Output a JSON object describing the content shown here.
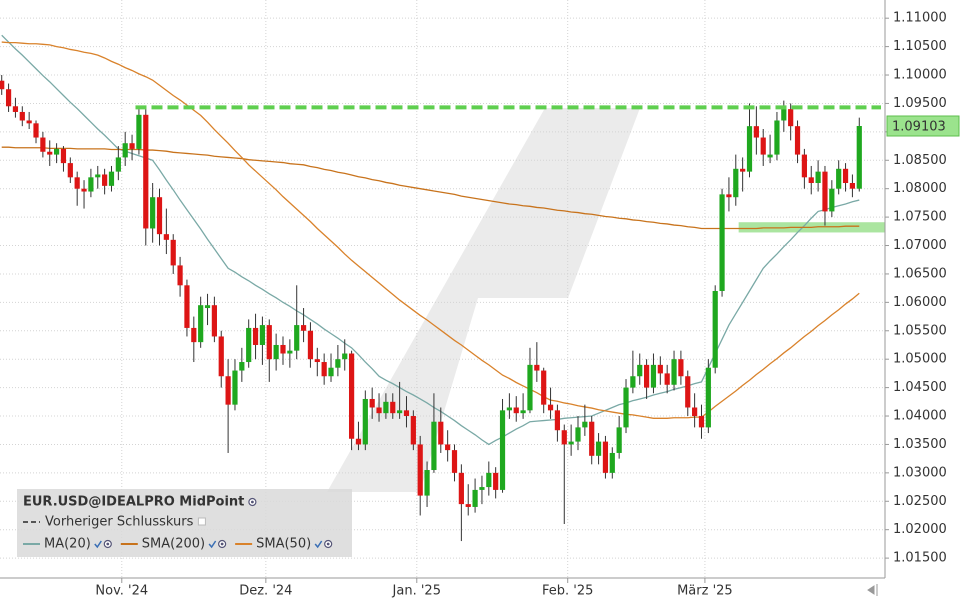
{
  "chart_data": {
    "type": "candlestick",
    "title": "EUR.USD@IDEALPRO MidPoint",
    "categories": [
      null,
      null,
      null,
      null,
      null,
      null,
      null,
      null,
      null,
      null,
      null,
      null,
      null,
      null,
      null,
      null,
      null,
      null,
      "Nov. '24",
      null,
      null,
      null,
      null,
      null,
      null,
      null,
      null,
      null,
      null,
      null,
      null,
      null,
      null,
      null,
      null,
      null,
      null,
      null,
      null,
      "Dez. '24",
      null,
      null,
      null,
      null,
      null,
      null,
      null,
      null,
      null,
      null,
      null,
      null,
      null,
      null,
      null,
      null,
      null,
      null,
      null,
      null,
      null,
      "Jan. '25",
      null,
      null,
      null,
      null,
      null,
      null,
      null,
      null,
      null,
      null,
      null,
      null,
      null,
      null,
      null,
      null,
      null,
      null,
      null,
      null,
      null,
      "Feb. '25",
      null,
      null,
      null,
      null,
      null,
      null,
      null,
      null,
      null,
      null,
      null,
      null,
      null,
      null,
      null,
      null,
      null,
      null,
      null,
      "März '25",
      null,
      null,
      null,
      null,
      null,
      null,
      null,
      null,
      null,
      null,
      null,
      null,
      null,
      null,
      null,
      null,
      null,
      null,
      null,
      null,
      null,
      null
    ],
    "open": [
      1.099,
      1.0975,
      1.0945,
      1.0935,
      1.092,
      1.0915,
      1.089,
      1.0865,
      1.086,
      1.087,
      1.0845,
      1.082,
      1.08,
      1.0795,
      1.082,
      1.0825,
      1.0805,
      1.083,
      1.0855,
      1.088,
      1.087,
      1.093,
      1.073,
      1.0785,
      1.072,
      1.071,
      1.0665,
      1.063,
      1.0555,
      1.053,
      1.059,
      1.0595,
      1.054,
      1.047,
      1.042,
      1.048,
      1.0495,
      1.0555,
      1.0525,
      1.056,
      1.05,
      1.0525,
      1.051,
      1.0515,
      1.056,
      1.055,
      1.05,
      1.0495,
      1.047,
      1.0485,
      1.05,
      1.051,
      1.036,
      1.035,
      1.043,
      1.0415,
      1.0405,
      1.0425,
      1.0405,
      1.041,
      1.04,
      1.035,
      1.026,
      1.0305,
      1.039,
      1.035,
      1.034,
      1.03,
      1.0245,
      1.024,
      1.027,
      1.0275,
      1.03,
      1.027,
      1.041,
      1.0415,
      1.0405,
      1.041,
      1.049,
      1.048,
      1.042,
      1.041,
      1.0375,
      1.035,
      1.0355,
      1.038,
      1.039,
      1.033,
      1.0355,
      1.03,
      1.0335,
      1.038,
      1.045,
      1.047,
      1.049,
      1.045,
      1.049,
      1.0475,
      1.0455,
      1.05,
      1.047,
      1.0415,
      1.04,
      1.038,
      1.0485,
      1.062,
      1.079,
      1.0785,
      1.0835,
      1.083,
      1.091,
      1.089,
      1.0855,
      1.086,
      1.092,
      1.094,
      1.091,
      1.086,
      1.082,
      1.081,
      1.083,
      1.076,
      1.08,
      1.0835,
      1.081,
      1.08
    ],
    "high": [
      1.1,
      1.0985,
      1.096,
      1.0945,
      1.0935,
      1.092,
      1.09,
      1.0885,
      1.088,
      1.0875,
      1.0855,
      1.083,
      1.0815,
      1.0835,
      1.084,
      1.0835,
      1.084,
      1.0875,
      1.09,
      1.0895,
      1.094,
      1.094,
      1.081,
      1.08,
      1.0765,
      1.072,
      1.068,
      1.064,
      1.0575,
      1.061,
      1.0615,
      1.061,
      1.055,
      1.05,
      1.05,
      1.052,
      1.057,
      1.058,
      1.0575,
      1.057,
      1.0545,
      1.054,
      1.0535,
      1.063,
      1.059,
      1.0565,
      1.052,
      1.051,
      1.051,
      1.0525,
      1.0535,
      1.0515,
      1.039,
      1.0445,
      1.045,
      1.044,
      1.044,
      1.044,
      1.046,
      1.0435,
      1.041,
      1.0365,
      1.032,
      1.044,
      1.0415,
      1.0375,
      1.035,
      1.0315,
      1.028,
      1.029,
      1.0295,
      1.032,
      1.031,
      1.043,
      1.044,
      1.0435,
      1.044,
      1.052,
      1.053,
      1.0485,
      1.045,
      1.042,
      1.0385,
      1.0385,
      1.04,
      1.042,
      1.04,
      1.037,
      1.0365,
      1.0345,
      1.04,
      1.0465,
      1.0515,
      1.051,
      1.05,
      1.051,
      1.0505,
      1.049,
      1.0515,
      1.0515,
      1.048,
      1.044,
      1.042,
      1.05,
      1.063,
      1.08,
      1.082,
      1.086,
      1.0855,
      1.095,
      1.0945,
      1.0905,
      1.0895,
      1.0935,
      1.0955,
      1.095,
      1.092,
      1.087,
      1.084,
      1.085,
      1.084,
      1.0815,
      1.085,
      1.0845,
      1.0825,
      1.0925
    ],
    "low": [
      1.0965,
      1.0935,
      1.0925,
      1.091,
      1.0905,
      1.088,
      1.0855,
      1.084,
      1.0845,
      1.083,
      1.081,
      1.077,
      1.0765,
      1.0785,
      1.08,
      1.079,
      1.0795,
      1.0815,
      1.084,
      1.085,
      1.086,
      1.07,
      1.0705,
      1.07,
      1.0685,
      1.065,
      1.061,
      1.054,
      1.0495,
      1.052,
      1.056,
      1.053,
      1.045,
      1.0335,
      1.041,
      1.046,
      1.0485,
      1.05,
      1.049,
      1.046,
      1.048,
      1.049,
      1.0485,
      1.05,
      1.053,
      1.0485,
      1.047,
      1.0455,
      1.046,
      1.047,
      1.048,
      1.034,
      1.034,
      1.034,
      1.0395,
      1.039,
      1.0395,
      1.0395,
      1.0395,
      1.038,
      1.034,
      1.0225,
      1.024,
      1.03,
      1.0335,
      1.032,
      1.0285,
      1.018,
      1.0225,
      1.023,
      1.0245,
      1.026,
      1.0255,
      1.0265,
      1.0395,
      1.039,
      1.0395,
      1.0405,
      1.046,
      1.0405,
      1.0395,
      1.0355,
      1.021,
      1.033,
      1.034,
      1.0365,
      1.0315,
      1.0315,
      1.029,
      1.029,
      1.0325,
      1.037,
      1.044,
      1.0455,
      1.043,
      1.044,
      1.0455,
      1.044,
      1.0445,
      1.0455,
      1.04,
      1.038,
      1.036,
      1.037,
      1.0475,
      1.061,
      1.076,
      1.077,
      1.0795,
      1.082,
      1.086,
      1.084,
      1.0845,
      1.085,
      1.09,
      1.0885,
      1.0845,
      1.08,
      1.079,
      1.0795,
      1.0735,
      1.075,
      1.079,
      1.0795,
      1.0785,
      1.0795
    ],
    "close": [
      1.0975,
      1.0945,
      1.0935,
      1.092,
      1.0915,
      1.089,
      1.0865,
      1.086,
      1.087,
      1.0845,
      1.082,
      1.08,
      1.0795,
      1.082,
      1.0825,
      1.0805,
      1.083,
      1.0855,
      1.088,
      1.087,
      1.093,
      1.073,
      1.0785,
      1.072,
      1.071,
      1.0665,
      1.063,
      1.0555,
      1.053,
      1.0595,
      1.0595,
      1.054,
      1.047,
      1.042,
      1.048,
      1.0495,
      1.0555,
      1.0525,
      1.056,
      1.05,
      1.0525,
      1.051,
      1.0515,
      1.056,
      1.055,
      1.05,
      1.0495,
      1.047,
      1.0485,
      1.05,
      1.051,
      1.036,
      1.035,
      1.043,
      1.0415,
      1.0405,
      1.0425,
      1.0405,
      1.041,
      1.04,
      1.035,
      1.026,
      1.0305,
      1.039,
      1.035,
      1.034,
      1.03,
      1.0245,
      1.024,
      1.027,
      1.0275,
      1.03,
      1.027,
      1.041,
      1.0415,
      1.0405,
      1.041,
      1.049,
      1.048,
      1.042,
      1.041,
      1.0375,
      1.035,
      1.0355,
      1.038,
      1.039,
      1.033,
      1.0355,
      1.03,
      1.0335,
      1.038,
      1.045,
      1.047,
      1.049,
      1.045,
      1.049,
      1.0475,
      1.0455,
      1.05,
      1.047,
      1.0415,
      1.04,
      1.038,
      1.0485,
      1.062,
      1.079,
      1.0785,
      1.0835,
      1.083,
      1.091,
      1.089,
      1.086,
      1.086,
      1.092,
      1.094,
      1.091,
      1.086,
      1.082,
      1.081,
      1.083,
      1.076,
      1.08,
      1.0835,
      1.081,
      1.08,
      1.09103
    ],
    "up_color": "#1fa81f",
    "down_color": "#dd1515",
    "series": [
      {
        "name": "MA(20)",
        "color": "#7aa9a6",
        "values": [
          1.107,
          1.1058,
          1.1046,
          1.1035,
          1.1023,
          1.1011,
          1.0999,
          1.0988,
          1.0976,
          1.0964,
          1.0952,
          1.0941,
          1.0929,
          1.0917,
          1.0905,
          1.0894,
          1.0882,
          1.087,
          1.0866,
          1.0862,
          1.0858,
          1.0854,
          1.085,
          1.0833,
          1.0815,
          1.0798,
          1.078,
          1.0763,
          1.0746,
          1.0729,
          1.0711,
          1.0694,
          1.0677,
          1.066,
          1.0653,
          1.0645,
          1.0638,
          1.063,
          1.0623,
          1.0615,
          1.0608,
          1.06,
          1.0593,
          1.0585,
          1.0578,
          1.057,
          1.0562,
          1.0553,
          1.0545,
          1.0537,
          1.0528,
          1.052,
          1.0508,
          1.0495,
          1.0483,
          1.047,
          1.0463,
          1.0457,
          1.045,
          1.0443,
          1.0437,
          1.043,
          1.0423,
          1.0415,
          1.0408,
          1.04,
          1.0392,
          1.0383,
          1.0375,
          1.0367,
          1.0358,
          1.035,
          1.0357,
          1.0363,
          1.037,
          1.0377,
          1.0383,
          1.039,
          1.0391,
          1.0392,
          1.0393,
          1.0394,
          1.0396,
          1.0397,
          1.0398,
          1.0399,
          1.04,
          1.0405,
          1.041,
          1.0415,
          1.042,
          1.0423,
          1.0427,
          1.043,
          1.0433,
          1.0437,
          1.044,
          1.0443,
          1.0447,
          1.045,
          1.0453,
          1.0457,
          1.046,
          1.0485,
          1.051,
          1.0535,
          1.056,
          1.058,
          1.06,
          1.062,
          1.064,
          1.066,
          1.0673,
          1.0685,
          1.0698,
          1.071,
          1.0723,
          1.0735,
          1.0748,
          1.076,
          1.0763,
          1.0767,
          1.077,
          1.0773,
          1.0777,
          1.078
        ]
      },
      {
        "name": "SMA(200)",
        "color": "#c8731c",
        "values": [
          1.0873,
          1.0873,
          1.0872,
          1.0872,
          1.0872,
          1.0872,
          1.0872,
          1.0871,
          1.0871,
          1.0871,
          1.0871,
          1.087,
          1.087,
          1.087,
          1.087,
          1.087,
          1.0869,
          1.0869,
          1.0869,
          1.0869,
          1.0869,
          1.0868,
          1.0868,
          1.0867,
          1.0866,
          1.0864,
          1.0863,
          1.0862,
          1.0861,
          1.086,
          1.0859,
          1.0857,
          1.0856,
          1.0855,
          1.0854,
          1.0853,
          1.0851,
          1.085,
          1.0849,
          1.0848,
          1.0847,
          1.0846,
          1.0844,
          1.0843,
          1.0842,
          1.0839,
          1.0837,
          1.0834,
          1.0832,
          1.0829,
          1.0827,
          1.0824,
          1.0821,
          1.0819,
          1.0816,
          1.0814,
          1.0811,
          1.0809,
          1.0806,
          1.0804,
          1.0802,
          1.08,
          1.0798,
          1.0796,
          1.0794,
          1.0792,
          1.079,
          1.0787,
          1.0785,
          1.0783,
          1.0781,
          1.0779,
          1.0777,
          1.0775,
          1.0773,
          1.0772,
          1.077,
          1.0769,
          1.0767,
          1.0766,
          1.0764,
          1.0762,
          1.0761,
          1.0759,
          1.0758,
          1.0756,
          1.0755,
          1.0753,
          1.0751,
          1.075,
          1.0748,
          1.0747,
          1.0745,
          1.0744,
          1.0742,
          1.0741,
          1.0739,
          1.0738,
          1.0736,
          1.0735,
          1.0733,
          1.0732,
          1.073,
          1.073,
          1.073,
          1.073,
          1.073,
          1.073,
          1.073,
          1.073,
          1.073,
          1.0731,
          1.0731,
          1.0731,
          1.0731,
          1.0732,
          1.0732,
          1.0732,
          1.0732,
          1.0733,
          1.0733,
          1.0733,
          1.0733,
          1.0734,
          1.0734,
          1.0734
        ]
      },
      {
        "name": "SMA(50)",
        "color": "#d9822b",
        "values": [
          1.1058,
          1.1057,
          1.1057,
          1.1056,
          1.1055,
          1.1055,
          1.1054,
          1.1053,
          1.105,
          1.1048,
          1.1045,
          1.1043,
          1.104,
          1.1038,
          1.1035,
          1.103,
          1.1024,
          1.1019,
          1.1013,
          1.1008,
          1.1002,
          1.0997,
          1.0991,
          1.0982,
          1.0973,
          1.0964,
          1.0956,
          1.0947,
          1.0938,
          1.0929,
          1.0917,
          1.0904,
          1.0892,
          1.088,
          1.0867,
          1.0855,
          1.0842,
          1.0831,
          1.082,
          1.0809,
          1.0798,
          1.0786,
          1.0775,
          1.0764,
          1.0753,
          1.0742,
          1.073,
          1.0719,
          1.0708,
          1.0697,
          1.0685,
          1.0674,
          1.0664,
          1.0654,
          1.0644,
          1.0634,
          1.0624,
          1.0614,
          1.0604,
          1.0595,
          1.0586,
          1.0577,
          1.0569,
          1.056,
          1.0551,
          1.0542,
          1.0533,
          1.0525,
          1.0516,
          1.0507,
          1.0498,
          1.049,
          1.0481,
          1.0472,
          1.0466,
          1.0459,
          1.0453,
          1.0447,
          1.0441,
          1.0434,
          1.0428,
          1.0426,
          1.0423,
          1.0421,
          1.0418,
          1.0416,
          1.0414,
          1.0411,
          1.0409,
          1.0407,
          1.0405,
          1.0403,
          1.0402,
          1.04,
          1.0398,
          1.0396,
          1.0396,
          1.0396,
          1.0397,
          1.0397,
          1.0397,
          1.0398,
          1.0398,
          1.0407,
          1.0417,
          1.0426,
          1.0435,
          1.0444,
          1.0454,
          1.0463,
          1.0473,
          1.0482,
          1.0492,
          1.0501,
          1.0511,
          1.052,
          1.053,
          1.054,
          1.0549,
          1.0559,
          1.0568,
          1.0578,
          1.0587,
          1.0597,
          1.0606,
          1.0616
        ]
      }
    ],
    "previous_close": {
      "name": "Vorheriger Schlusskurs",
      "value": 1.0943,
      "color": "#5fcf4f"
    },
    "support_zone": {
      "range": [
        1.0723,
        1.0741
      ],
      "color": "#8fdc80"
    },
    "ylim": [
      1.0115,
      1.1132
    ],
    "yticks": [
      {
        "value": 1.015,
        "label": "1.01500"
      },
      {
        "value": 1.02,
        "label": "1.02000"
      },
      {
        "value": 1.025,
        "label": "1.02500"
      },
      {
        "value": 1.03,
        "label": "1.03000"
      },
      {
        "value": 1.035,
        "label": "1.03500"
      },
      {
        "value": 1.04,
        "label": "1.04000"
      },
      {
        "value": 1.045,
        "label": "1.04500"
      },
      {
        "value": 1.05,
        "label": "1.05000"
      },
      {
        "value": 1.055,
        "label": "1.05500"
      },
      {
        "value": 1.06,
        "label": "1.06000"
      },
      {
        "value": 1.065,
        "label": "1.06500"
      },
      {
        "value": 1.07,
        "label": "1.07000"
      },
      {
        "value": 1.075,
        "label": "1.07500"
      },
      {
        "value": 1.08,
        "label": "1.08000"
      },
      {
        "value": 1.085,
        "label": "1.08500"
      },
      {
        "value": 1.09,
        "label": "1.09000"
      },
      {
        "value": 1.095,
        "label": "1.09500"
      },
      {
        "value": 1.1,
        "label": "1.10000"
      },
      {
        "value": 1.105,
        "label": "1.10500"
      },
      {
        "value": 1.11,
        "label": "1.11000"
      }
    ],
    "grid": true,
    "legend": "bottom-left"
  }
}
